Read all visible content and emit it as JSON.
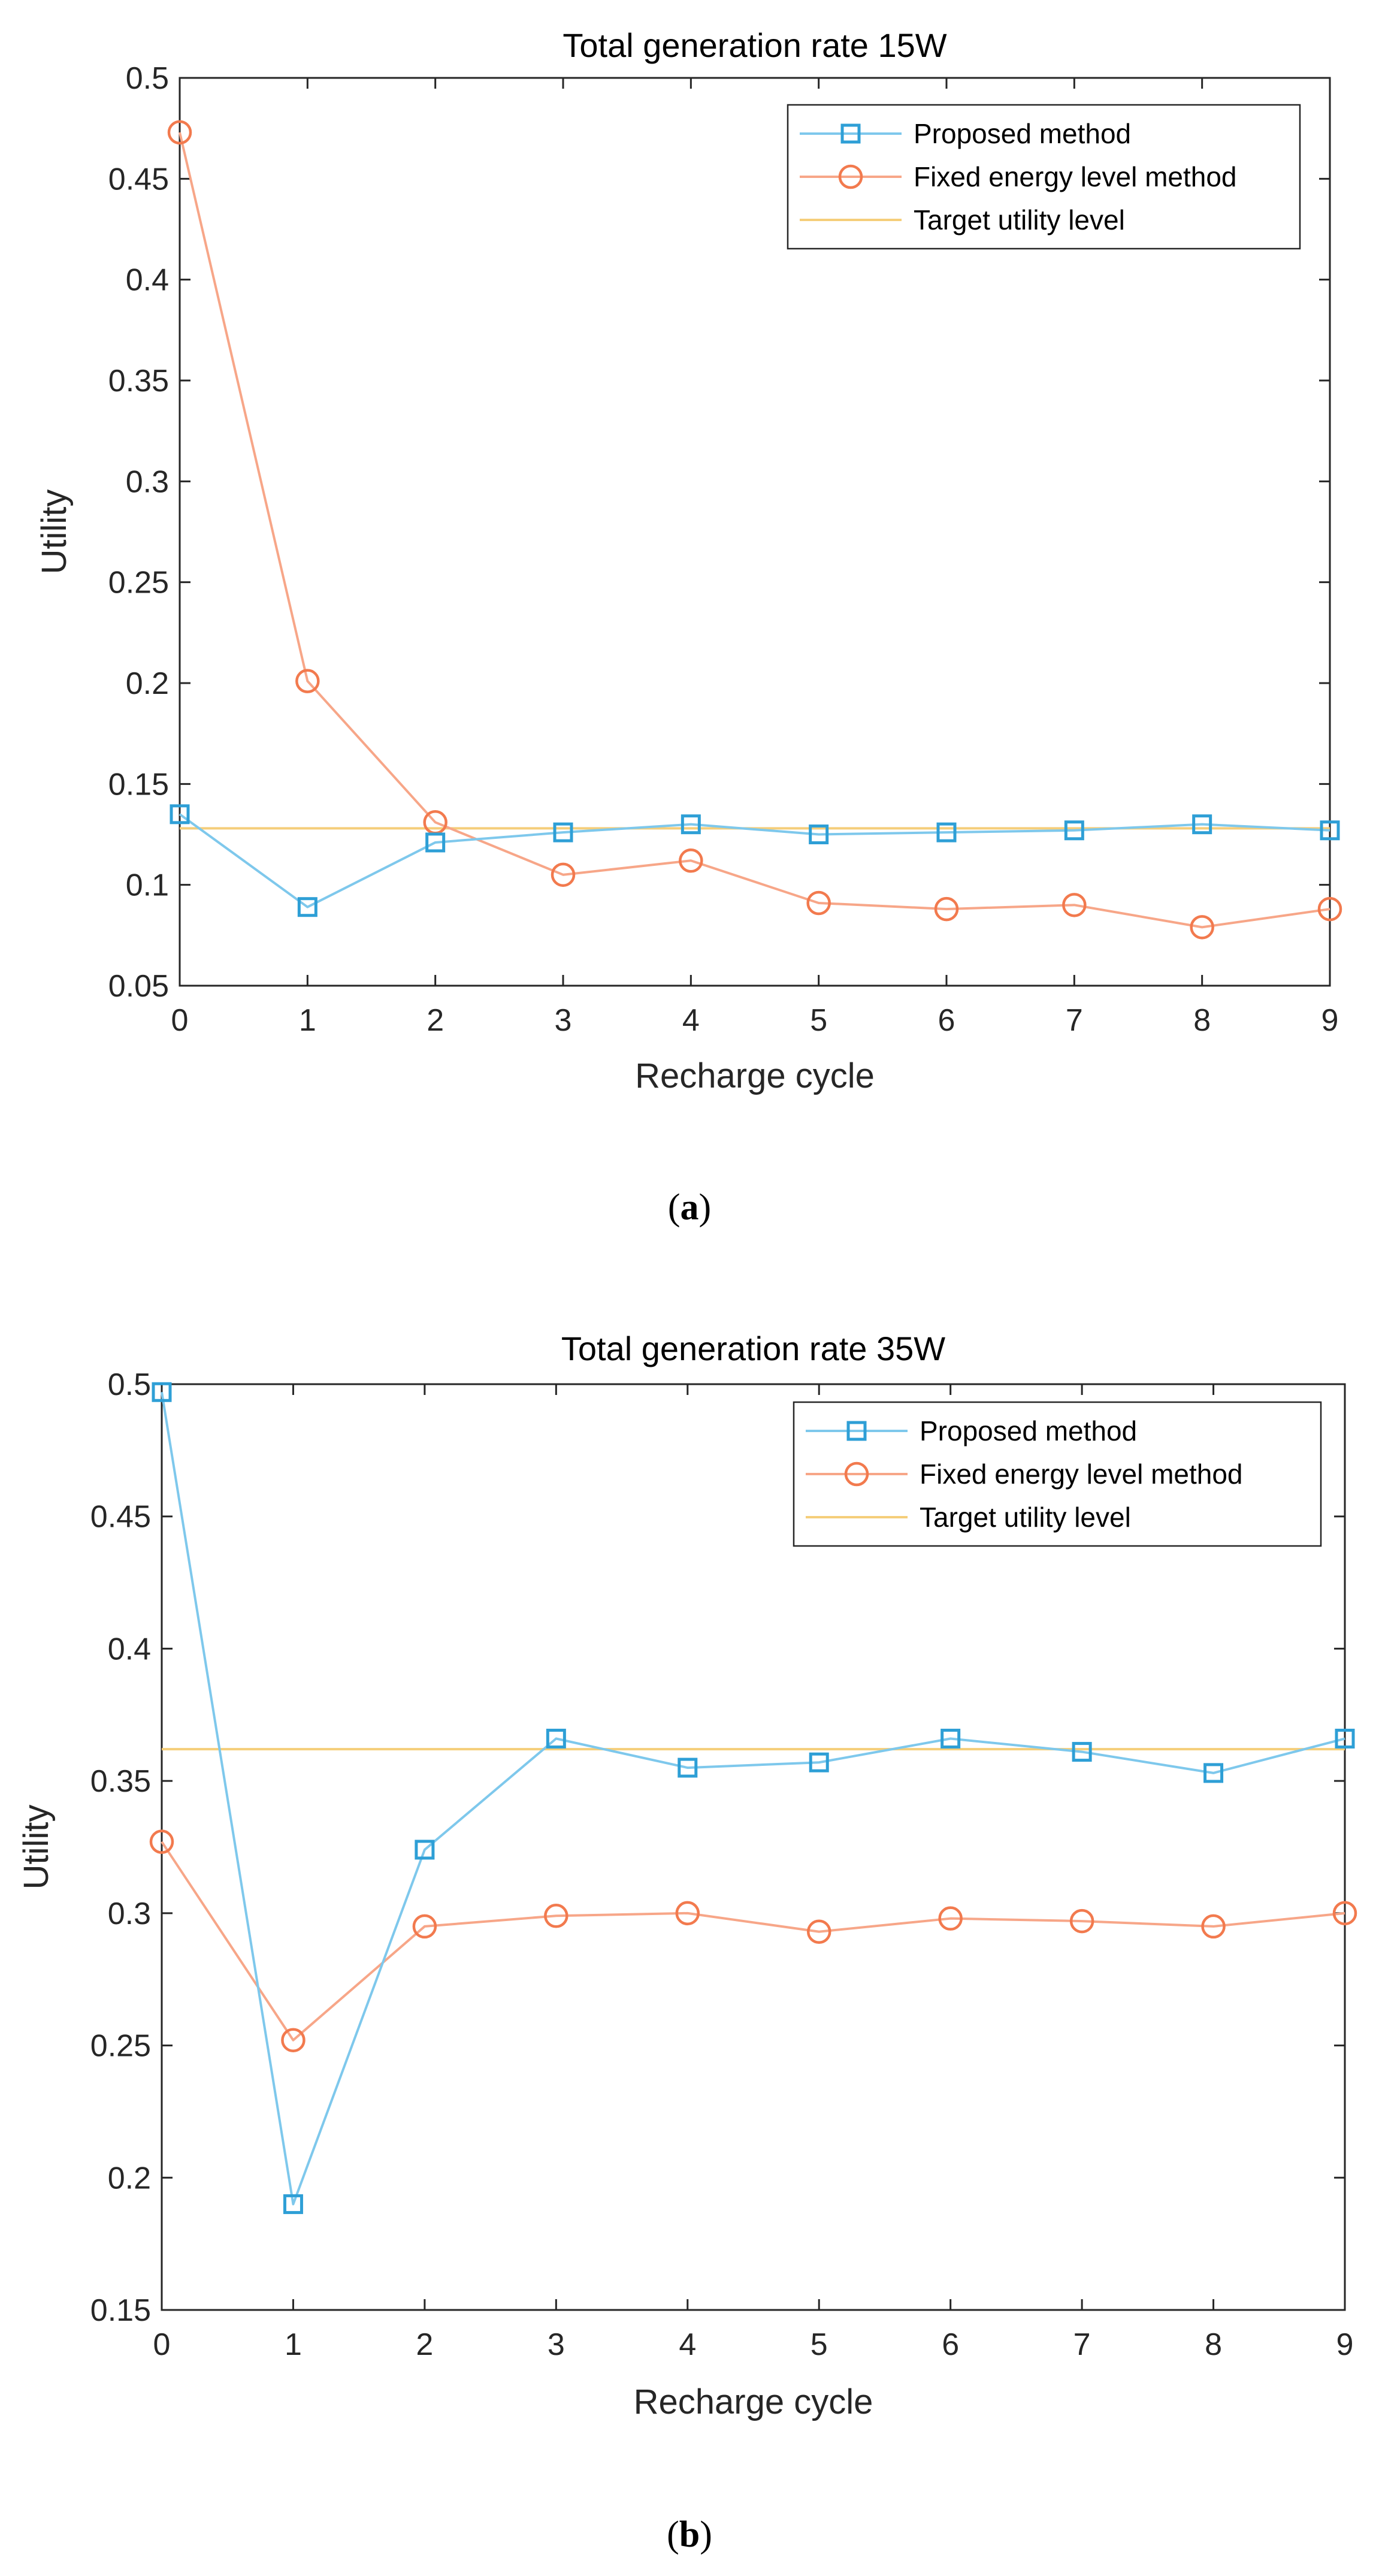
{
  "colors": {
    "proposed": "#2E9FD6",
    "proposed_line": "#7EC8EC",
    "fixed": "#F27A4E",
    "fixed_line": "#F7A688",
    "target": "#F5CE7A",
    "axis": "#262626",
    "background": "#ffffff"
  },
  "chart_data": [
    {
      "type": "line",
      "panel": "a",
      "caption": "a",
      "title": "Total generation rate 15W",
      "xlabel": "Recharge cycle",
      "ylabel": "Utility",
      "xlim": [
        0,
        9
      ],
      "ylim": [
        0.05,
        0.5
      ],
      "xticks": [
        0,
        1,
        2,
        3,
        4,
        5,
        6,
        7,
        8,
        9
      ],
      "xtick_labels": [
        "0",
        "1",
        "2",
        "3",
        "4",
        "5",
        "6",
        "7",
        "8",
        "9"
      ],
      "yticks": [
        0.05,
        0.1,
        0.15,
        0.2,
        0.25,
        0.3,
        0.35,
        0.4,
        0.45,
        0.5
      ],
      "ytick_labels": [
        "0.05",
        "0.1",
        "0.15",
        "0.2",
        "0.25",
        "0.3",
        "0.35",
        "0.4",
        "0.45",
        "0.5"
      ],
      "legend_position": "top-right",
      "x": [
        0,
        1,
        2,
        3,
        4,
        5,
        6,
        7,
        8,
        9
      ],
      "series": [
        {
          "name": "Proposed method",
          "marker": "square",
          "color_key": "proposed",
          "values": [
            0.135,
            0.089,
            0.121,
            0.126,
            0.13,
            0.125,
            0.126,
            0.127,
            0.13,
            0.127
          ]
        },
        {
          "name": "Fixed energy level method",
          "marker": "circle",
          "color_key": "fixed",
          "values": [
            0.473,
            0.201,
            0.131,
            0.105,
            0.112,
            0.091,
            0.088,
            0.09,
            0.079,
            0.088
          ]
        },
        {
          "name": "Target utility level",
          "marker": "none",
          "color_key": "target",
          "values": [
            0.128,
            0.128,
            0.128,
            0.128,
            0.128,
            0.128,
            0.128,
            0.128,
            0.128,
            0.128
          ]
        }
      ]
    },
    {
      "type": "line",
      "panel": "b",
      "caption": "b",
      "title": "Total generation rate 35W",
      "xlabel": "Recharge cycle",
      "ylabel": "Utility",
      "xlim": [
        0,
        9
      ],
      "ylim": [
        0.15,
        0.5
      ],
      "xticks": [
        0,
        1,
        2,
        3,
        4,
        5,
        6,
        7,
        8,
        9
      ],
      "xtick_labels": [
        "0",
        "1",
        "2",
        "3",
        "4",
        "5",
        "6",
        "7",
        "8",
        "9"
      ],
      "yticks": [
        0.15,
        0.2,
        0.25,
        0.3,
        0.35,
        0.4,
        0.45,
        0.5
      ],
      "ytick_labels": [
        "0.15",
        "0.2",
        "0.25",
        "0.3",
        "0.35",
        "0.4",
        "0.45",
        "0.5"
      ],
      "legend_position": "top-right",
      "x": [
        0,
        1,
        2,
        3,
        4,
        5,
        6,
        7,
        8,
        9
      ],
      "series": [
        {
          "name": "Proposed method",
          "marker": "square",
          "color_key": "proposed",
          "values": [
            0.497,
            0.19,
            0.324,
            0.366,
            0.355,
            0.357,
            0.366,
            0.361,
            0.353,
            0.366
          ]
        },
        {
          "name": "Fixed energy level method",
          "marker": "circle",
          "color_key": "fixed",
          "values": [
            0.327,
            0.252,
            0.295,
            0.299,
            0.3,
            0.293,
            0.298,
            0.297,
            0.295,
            0.3
          ]
        },
        {
          "name": "Target utility level",
          "marker": "none",
          "color_key": "target",
          "values": [
            0.362,
            0.362,
            0.362,
            0.362,
            0.362,
            0.362,
            0.362,
            0.362,
            0.362,
            0.362
          ]
        }
      ]
    }
  ]
}
